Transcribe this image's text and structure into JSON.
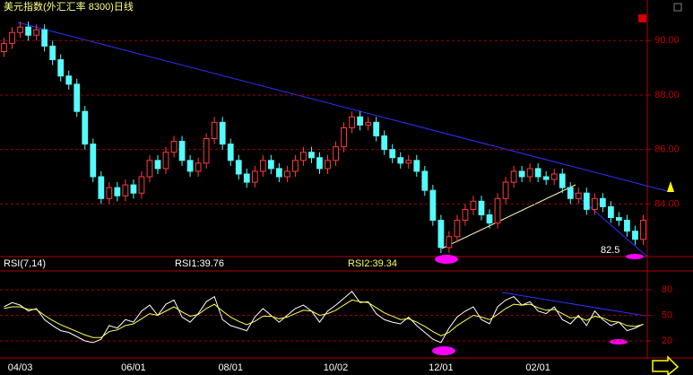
{
  "chart_data": [
    {
      "type": "candlestick",
      "title": "美元指数(外汇汇率 8300)日线",
      "open": [
        89.6,
        89.9,
        90.3,
        90.5,
        90.2,
        90.4,
        89.8,
        89.3,
        88.7,
        88.4,
        87.4,
        86.2,
        85.0,
        84.2,
        84.6,
        84.3,
        84.7,
        84.4,
        85.0,
        85.6,
        85.3,
        85.9,
        86.3,
        85.6,
        85.2,
        85.5,
        86.4,
        87.0,
        86.2,
        85.6,
        85.1,
        84.8,
        85.2,
        85.6,
        85.3,
        85.0,
        85.2,
        85.6,
        85.9,
        85.7,
        85.3,
        85.6,
        86.1,
        86.8,
        87.2,
        86.9,
        87.0,
        86.5,
        86.0,
        85.7,
        85.5,
        85.6,
        85.2,
        84.5,
        83.4,
        82.4,
        82.8,
        83.4,
        83.8,
        84.1,
        83.6,
        83.3,
        84.2,
        84.8,
        85.2,
        85.0,
        85.3,
        85.0,
        84.9,
        85.1,
        84.6,
        84.2,
        84.4,
        83.8,
        84.2,
        83.9,
        83.5,
        83.4,
        83.0,
        82.7
      ],
      "high": [
        90.1,
        90.5,
        90.7,
        90.7,
        90.6,
        90.6,
        90.0,
        89.5,
        88.9,
        88.6,
        87.6,
        86.4,
        85.2,
        84.8,
        84.8,
        84.9,
        84.9,
        85.2,
        85.8,
        85.8,
        86.1,
        86.5,
        86.5,
        85.8,
        85.7,
        86.6,
        87.2,
        87.2,
        86.4,
        85.8,
        85.3,
        85.4,
        85.8,
        85.8,
        85.5,
        85.4,
        85.8,
        86.1,
        86.1,
        85.9,
        85.8,
        86.3,
        87.0,
        87.4,
        87.4,
        87.2,
        87.2,
        86.7,
        86.2,
        85.9,
        85.8,
        85.8,
        85.4,
        84.7,
        83.6,
        83.0,
        83.6,
        84.0,
        84.3,
        84.3,
        83.8,
        84.4,
        85.0,
        85.4,
        85.4,
        85.5,
        85.5,
        85.2,
        85.3,
        85.3,
        84.8,
        84.6,
        84.6,
        84.4,
        84.4,
        84.1,
        83.7,
        83.6,
        83.2,
        83.6
      ],
      "low": [
        89.4,
        89.7,
        90.1,
        90.0,
        90.0,
        89.6,
        89.1,
        88.5,
        88.2,
        87.2,
        86.0,
        84.8,
        84.0,
        84.0,
        84.1,
        84.1,
        84.2,
        84.2,
        84.8,
        85.1,
        85.1,
        85.7,
        85.4,
        85.0,
        85.0,
        85.3,
        86.2,
        86.0,
        85.4,
        84.9,
        84.6,
        84.6,
        85.0,
        85.1,
        84.8,
        84.8,
        85.0,
        85.4,
        85.5,
        85.1,
        85.1,
        85.4,
        85.9,
        86.6,
        86.7,
        86.7,
        86.3,
        85.8,
        85.5,
        85.3,
        85.3,
        85.0,
        84.3,
        83.2,
        82.2,
        82.2,
        82.6,
        83.2,
        83.6,
        83.4,
        83.1,
        83.1,
        84.0,
        84.6,
        84.8,
        84.8,
        84.8,
        84.7,
        84.7,
        84.4,
        84.0,
        84.0,
        83.6,
        83.6,
        83.7,
        83.3,
        83.2,
        82.8,
        82.5,
        82.5
      ],
      "close": [
        89.9,
        90.3,
        90.5,
        90.2,
        90.4,
        89.8,
        89.3,
        88.7,
        88.4,
        87.4,
        86.2,
        85.0,
        84.2,
        84.6,
        84.3,
        84.7,
        84.4,
        85.0,
        85.6,
        85.3,
        85.9,
        86.3,
        85.6,
        85.2,
        85.5,
        86.4,
        87.0,
        86.2,
        85.6,
        85.1,
        84.8,
        85.2,
        85.6,
        85.3,
        85.0,
        85.2,
        85.6,
        85.9,
        85.7,
        85.3,
        85.6,
        86.1,
        86.8,
        87.2,
        86.9,
        87.0,
        86.5,
        86.0,
        85.7,
        85.5,
        85.6,
        85.2,
        84.5,
        83.4,
        82.4,
        82.8,
        83.4,
        83.8,
        84.1,
        83.6,
        83.3,
        84.2,
        84.8,
        85.2,
        85.0,
        85.3,
        85.0,
        84.9,
        85.1,
        84.6,
        84.2,
        84.4,
        83.8,
        84.2,
        83.9,
        83.5,
        83.4,
        83.0,
        82.7,
        83.4
      ],
      "up_color": "#ff3c3c",
      "down_color": "#54fcfc",
      "ylim": [
        82.1,
        90.9
      ],
      "yticks": [
        {
          "value": 84,
          "label": "84.00"
        },
        {
          "value": 86,
          "label": "86.00"
        },
        {
          "value": 88,
          "label": "88.00"
        },
        {
          "value": 90,
          "label": "90.00"
        }
      ],
      "grid": true,
      "annotation": "82.5"
    },
    {
      "type": "line",
      "label": "RSI(7,14)",
      "categories": [
        null,
        null,
        "04/03",
        null,
        null,
        null,
        null,
        null,
        null,
        null,
        null,
        null,
        null,
        null,
        null,
        null,
        "06/01",
        null,
        null,
        null,
        null,
        null,
        null,
        null,
        null,
        null,
        null,
        null,
        "08/01",
        null,
        null,
        null,
        null,
        null,
        null,
        null,
        null,
        null,
        null,
        null,
        null,
        "10/02",
        null,
        null,
        null,
        null,
        null,
        null,
        null,
        null,
        null,
        null,
        null,
        null,
        "12/01",
        null,
        null,
        null,
        null,
        null,
        null,
        null,
        null,
        null,
        null,
        null,
        "02/01",
        null,
        null,
        null,
        null,
        null,
        null,
        null,
        null,
        null,
        null,
        null,
        null,
        null
      ],
      "series": [
        {
          "name": "RSI1:39.76",
          "color": "#ffffff",
          "values": [
            60,
            65,
            62,
            55,
            58,
            45,
            38,
            32,
            30,
            25,
            20,
            18,
            22,
            38,
            35,
            45,
            42,
            55,
            62,
            50,
            63,
            68,
            48,
            42,
            52,
            66,
            72,
            45,
            38,
            35,
            32,
            48,
            58,
            50,
            42,
            50,
            58,
            62,
            55,
            42,
            55,
            62,
            70,
            78,
            65,
            66,
            52,
            45,
            42,
            40,
            48,
            38,
            30,
            22,
            18,
            35,
            48,
            55,
            60,
            45,
            40,
            60,
            68,
            72,
            62,
            66,
            55,
            52,
            60,
            45,
            40,
            50,
            38,
            55,
            45,
            38,
            42,
            32,
            35,
            39.76
          ]
        },
        {
          "name": "RSI2:39.34",
          "color": "#ffff54",
          "values": [
            58,
            60,
            60,
            57,
            57,
            50,
            44,
            39,
            35,
            31,
            27,
            24,
            24,
            31,
            33,
            38,
            40,
            46,
            52,
            50,
            55,
            60,
            54,
            49,
            51,
            58,
            63,
            55,
            48,
            43,
            39,
            43,
            49,
            49,
            46,
            48,
            52,
            56,
            55,
            50,
            52,
            56,
            62,
            68,
            66,
            65,
            59,
            53,
            49,
            45,
            46,
            42,
            37,
            31,
            26,
            30,
            38,
            44,
            50,
            48,
            45,
            51,
            58,
            63,
            62,
            63,
            59,
            56,
            57,
            52,
            47,
            48,
            44,
            49,
            47,
            43,
            42,
            38,
            37,
            39.34
          ]
        }
      ],
      "ylim": [
        0,
        100
      ],
      "yticks": [
        20,
        50,
        80
      ],
      "grid": true
    }
  ]
}
